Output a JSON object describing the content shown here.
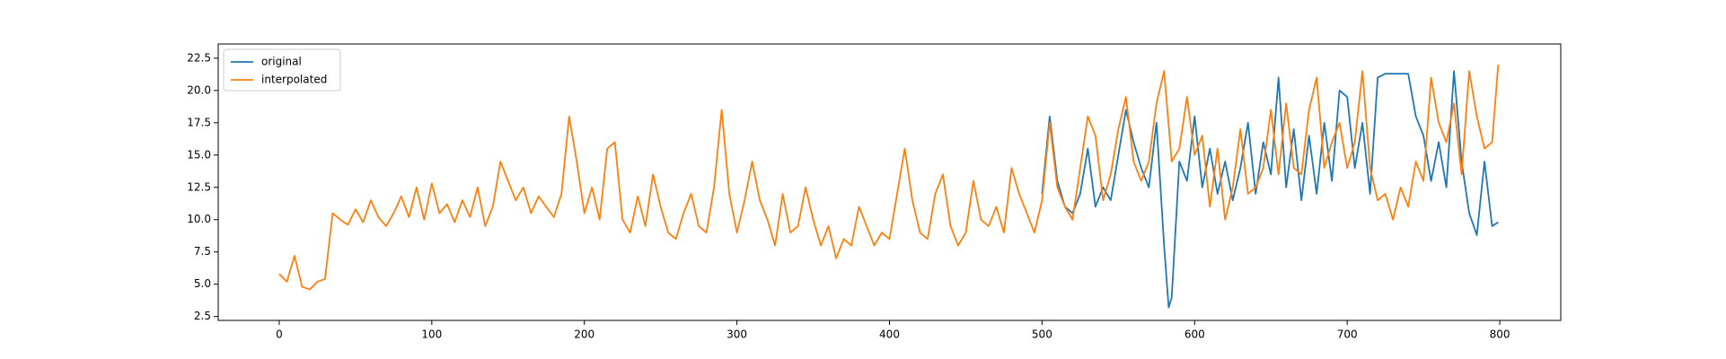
{
  "chart_data": {
    "type": "line",
    "series": [
      {
        "name": "original",
        "color": "#1f77b4",
        "x": [
          500,
          505,
          510,
          515,
          520,
          525,
          530,
          535,
          540,
          545,
          550,
          555,
          560,
          565,
          570,
          575,
          580,
          583,
          585,
          590,
          595,
          600,
          605,
          610,
          615,
          620,
          625,
          630,
          635,
          640,
          645,
          650,
          655,
          660,
          665,
          670,
          675,
          680,
          685,
          690,
          695,
          700,
          705,
          710,
          715,
          720,
          725,
          730,
          735,
          740,
          745,
          750,
          755,
          760,
          765,
          770,
          775,
          780,
          785,
          790,
          795,
          799
        ],
        "values": [
          12.0,
          18.0,
          13.0,
          11.0,
          10.5,
          12.0,
          15.5,
          11.0,
          12.5,
          11.5,
          15.0,
          18.5,
          16.0,
          14.0,
          12.5,
          17.5,
          8.0,
          3.2,
          4.0,
          14.5,
          13.0,
          18.0,
          12.5,
          15.5,
          12.0,
          14.5,
          11.5,
          14.0,
          17.5,
          12.0,
          16.0,
          13.5,
          21.0,
          12.5,
          17.0,
          11.5,
          16.5,
          12.0,
          17.5,
          13.0,
          20.0,
          19.5,
          14.0,
          17.5,
          12.0,
          21.0,
          21.3,
          21.3,
          21.3,
          21.3,
          18.0,
          16.5,
          13.0,
          16.0,
          12.5,
          21.5,
          14.5,
          10.5,
          8.8,
          14.5,
          9.5,
          9.8
        ]
      },
      {
        "name": "interpolated",
        "color": "#ff7f0e",
        "x": [
          0,
          5,
          10,
          15,
          20,
          25,
          30,
          35,
          40,
          45,
          50,
          55,
          60,
          65,
          70,
          75,
          80,
          85,
          90,
          95,
          100,
          105,
          110,
          115,
          120,
          125,
          130,
          135,
          140,
          145,
          150,
          155,
          160,
          165,
          170,
          175,
          180,
          185,
          190,
          195,
          200,
          205,
          210,
          215,
          220,
          225,
          230,
          235,
          240,
          245,
          250,
          255,
          260,
          265,
          270,
          275,
          280,
          285,
          290,
          295,
          300,
          305,
          310,
          315,
          320,
          325,
          330,
          335,
          340,
          345,
          350,
          355,
          360,
          365,
          370,
          375,
          380,
          385,
          390,
          395,
          400,
          405,
          410,
          415,
          420,
          425,
          430,
          435,
          440,
          445,
          450,
          455,
          460,
          465,
          470,
          475,
          480,
          485,
          490,
          495,
          500,
          505,
          510,
          515,
          520,
          525,
          530,
          535,
          540,
          545,
          550,
          555,
          560,
          565,
          570,
          575,
          580,
          585,
          590,
          595,
          600,
          605,
          610,
          615,
          620,
          625,
          630,
          635,
          640,
          645,
          650,
          655,
          660,
          665,
          670,
          675,
          680,
          685,
          690,
          695,
          700,
          705,
          710,
          715,
          720,
          725,
          730,
          735,
          740,
          745,
          750,
          755,
          760,
          765,
          770,
          775,
          780,
          785,
          790,
          795,
          799
        ],
        "values": [
          5.8,
          5.2,
          7.2,
          4.8,
          4.6,
          5.2,
          5.4,
          10.5,
          10.0,
          9.6,
          10.8,
          9.8,
          11.5,
          10.2,
          9.5,
          10.5,
          11.8,
          10.2,
          12.5,
          10.0,
          12.8,
          10.5,
          11.2,
          9.8,
          11.5,
          10.2,
          12.5,
          9.5,
          11.0,
          14.5,
          13.0,
          11.5,
          12.5,
          10.5,
          11.8,
          11.0,
          10.2,
          12.0,
          18.0,
          14.5,
          10.5,
          12.5,
          10.0,
          15.5,
          16.0,
          10.0,
          9.0,
          11.8,
          9.5,
          13.5,
          11.0,
          9.0,
          8.5,
          10.5,
          12.0,
          9.5,
          9.0,
          12.5,
          18.5,
          12.0,
          9.0,
          11.5,
          14.5,
          11.5,
          10.0,
          8.0,
          12.0,
          9.0,
          9.5,
          12.5,
          10.0,
          8.0,
          9.5,
          7.0,
          8.5,
          8.0,
          11.0,
          9.5,
          8.0,
          9.0,
          8.5,
          12.0,
          15.5,
          11.5,
          9.0,
          8.5,
          12.0,
          13.5,
          9.5,
          8.0,
          9.0,
          13.0,
          10.0,
          9.5,
          11.0,
          9.0,
          14.0,
          12.0,
          10.5,
          9.0,
          11.5,
          17.5,
          12.5,
          11.0,
          10.0,
          14.0,
          18.0,
          16.5,
          11.5,
          13.5,
          17.0,
          19.5,
          14.5,
          13.0,
          14.5,
          19.0,
          21.5,
          14.5,
          15.5,
          19.5,
          15.0,
          16.5,
          11.0,
          15.5,
          10.0,
          12.5,
          17.0,
          12.0,
          12.5,
          14.0,
          18.5,
          13.5,
          19.0,
          14.0,
          13.5,
          18.5,
          21.0,
          14.0,
          16.0,
          17.5,
          14.0,
          16.0,
          21.5,
          14.0,
          11.5,
          12.0,
          10.0,
          12.5,
          11.0,
          14.5,
          13.0,
          21.0,
          17.5,
          16.0,
          19.0,
          13.5,
          21.5,
          18.0,
          15.5,
          16.0,
          22.0
        ]
      }
    ],
    "xlim": [
      -40,
      840
    ],
    "xticks": [
      0,
      100,
      200,
      300,
      400,
      500,
      600,
      700,
      800
    ],
    "ylim": [
      2.2,
      23.6
    ],
    "yticks": [
      2.5,
      {
        "value": 5,
        "label": "5.0"
      },
      7.5,
      {
        "value": 10,
        "label": "10.0"
      },
      12.5,
      {
        "value": 15,
        "label": "15.0"
      },
      17.5,
      {
        "value": 20,
        "label": "20.0"
      },
      22.5
    ],
    "legend": "upper left",
    "grid": false
  }
}
